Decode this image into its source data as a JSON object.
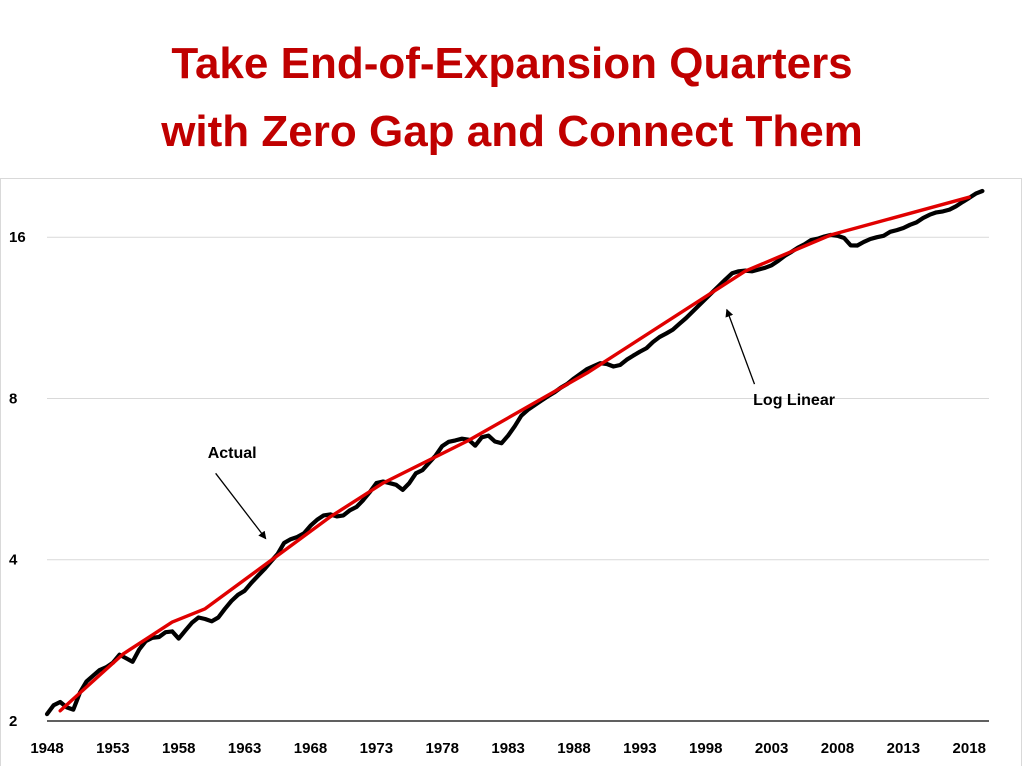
{
  "slide": {
    "title_line1": "Take End-of-Expansion Quarters",
    "title_line2": "with Zero Gap and Connect Them"
  },
  "colors": {
    "title": "#c00000",
    "actual": "#000000",
    "trend": "#e00000",
    "grid": "#d9d9d9"
  },
  "chart_data": {
    "type": "line",
    "y_scale": "log2",
    "ylim": [
      2,
      20.2
    ],
    "xlim": [
      1948,
      2019.5
    ],
    "grid": "horizontal",
    "y_ticks": [
      {
        "value": 2,
        "label": "2"
      },
      {
        "value": 4,
        "label": "4"
      },
      {
        "value": 8,
        "label": "8"
      },
      {
        "value": 16,
        "label": "16"
      }
    ],
    "x_ticks": [
      {
        "value": 1948,
        "label": "1948"
      },
      {
        "value": 1953,
        "label": "1953"
      },
      {
        "value": 1958,
        "label": "1958"
      },
      {
        "value": 1963,
        "label": "1963"
      },
      {
        "value": 1968,
        "label": "1968"
      },
      {
        "value": 1973,
        "label": "1973"
      },
      {
        "value": 1978,
        "label": "1978"
      },
      {
        "value": 1983,
        "label": "1983"
      },
      {
        "value": 1988,
        "label": "1988"
      },
      {
        "value": 1993,
        "label": "1993"
      },
      {
        "value": 1998,
        "label": "1998"
      },
      {
        "value": 2003,
        "label": "2003"
      },
      {
        "value": 2008,
        "label": "2008"
      },
      {
        "value": 2013,
        "label": "2013"
      },
      {
        "value": 2018,
        "label": "2018"
      }
    ],
    "series": [
      {
        "name": "Actual",
        "points": [
          [
            1948.0,
            2.06
          ],
          [
            1948.5,
            2.14
          ],
          [
            1949.0,
            2.17
          ],
          [
            1949.5,
            2.12
          ],
          [
            1950.0,
            2.1
          ],
          [
            1950.5,
            2.26
          ],
          [
            1951.0,
            2.37
          ],
          [
            1951.5,
            2.43
          ],
          [
            1952.0,
            2.49
          ],
          [
            1952.5,
            2.52
          ],
          [
            1953.0,
            2.57
          ],
          [
            1953.5,
            2.66
          ],
          [
            1954.0,
            2.62
          ],
          [
            1954.5,
            2.58
          ],
          [
            1955.0,
            2.72
          ],
          [
            1955.5,
            2.82
          ],
          [
            1956.0,
            2.86
          ],
          [
            1956.5,
            2.87
          ],
          [
            1957.0,
            2.93
          ],
          [
            1957.5,
            2.94
          ],
          [
            1958.0,
            2.85
          ],
          [
            1958.5,
            2.95
          ],
          [
            1959.0,
            3.05
          ],
          [
            1959.5,
            3.12
          ],
          [
            1960.0,
            3.1
          ],
          [
            1960.5,
            3.07
          ],
          [
            1961.0,
            3.12
          ],
          [
            1961.5,
            3.24
          ],
          [
            1962.0,
            3.35
          ],
          [
            1962.5,
            3.44
          ],
          [
            1963.0,
            3.5
          ],
          [
            1963.5,
            3.62
          ],
          [
            1964.0,
            3.73
          ],
          [
            1964.5,
            3.84
          ],
          [
            1965.0,
            3.97
          ],
          [
            1965.5,
            4.1
          ],
          [
            1966.0,
            4.3
          ],
          [
            1966.5,
            4.37
          ],
          [
            1967.0,
            4.41
          ],
          [
            1967.5,
            4.48
          ],
          [
            1968.0,
            4.63
          ],
          [
            1968.5,
            4.75
          ],
          [
            1969.0,
            4.84
          ],
          [
            1969.5,
            4.86
          ],
          [
            1970.0,
            4.82
          ],
          [
            1970.5,
            4.84
          ],
          [
            1971.0,
            4.95
          ],
          [
            1971.5,
            5.02
          ],
          [
            1972.0,
            5.17
          ],
          [
            1972.5,
            5.35
          ],
          [
            1973.0,
            5.56
          ],
          [
            1973.5,
            5.6
          ],
          [
            1974.0,
            5.56
          ],
          [
            1974.5,
            5.52
          ],
          [
            1975.0,
            5.4
          ],
          [
            1975.5,
            5.56
          ],
          [
            1976.0,
            5.8
          ],
          [
            1976.5,
            5.88
          ],
          [
            1977.0,
            6.07
          ],
          [
            1977.5,
            6.26
          ],
          [
            1978.0,
            6.52
          ],
          [
            1978.5,
            6.64
          ],
          [
            1979.0,
            6.68
          ],
          [
            1979.5,
            6.73
          ],
          [
            1980.0,
            6.7
          ],
          [
            1980.5,
            6.53
          ],
          [
            1981.0,
            6.77
          ],
          [
            1981.5,
            6.82
          ],
          [
            1982.0,
            6.65
          ],
          [
            1982.5,
            6.6
          ],
          [
            1983.0,
            6.82
          ],
          [
            1983.5,
            7.1
          ],
          [
            1984.0,
            7.43
          ],
          [
            1984.5,
            7.62
          ],
          [
            1985.0,
            7.77
          ],
          [
            1985.5,
            7.92
          ],
          [
            1986.0,
            8.07
          ],
          [
            1986.5,
            8.21
          ],
          [
            1987.0,
            8.38
          ],
          [
            1987.5,
            8.52
          ],
          [
            1988.0,
            8.72
          ],
          [
            1988.5,
            8.9
          ],
          [
            1989.0,
            9.08
          ],
          [
            1989.5,
            9.2
          ],
          [
            1990.0,
            9.31
          ],
          [
            1990.5,
            9.28
          ],
          [
            1991.0,
            9.18
          ],
          [
            1991.5,
            9.24
          ],
          [
            1992.0,
            9.45
          ],
          [
            1992.5,
            9.62
          ],
          [
            1993.0,
            9.78
          ],
          [
            1993.5,
            9.93
          ],
          [
            1994.0,
            10.2
          ],
          [
            1994.5,
            10.42
          ],
          [
            1995.0,
            10.58
          ],
          [
            1995.5,
            10.75
          ],
          [
            1996.0,
            11.03
          ],
          [
            1996.5,
            11.3
          ],
          [
            1997.0,
            11.62
          ],
          [
            1997.5,
            11.95
          ],
          [
            1998.0,
            12.28
          ],
          [
            1998.5,
            12.63
          ],
          [
            1999.0,
            12.98
          ],
          [
            1999.5,
            13.35
          ],
          [
            2000.0,
            13.7
          ],
          [
            2000.5,
            13.82
          ],
          [
            2001.0,
            13.86
          ],
          [
            2001.5,
            13.82
          ],
          [
            2002.0,
            13.92
          ],
          [
            2002.5,
            14.03
          ],
          [
            2003.0,
            14.18
          ],
          [
            2003.5,
            14.45
          ],
          [
            2004.0,
            14.77
          ],
          [
            2004.5,
            15.02
          ],
          [
            2005.0,
            15.3
          ],
          [
            2005.5,
            15.52
          ],
          [
            2006.0,
            15.81
          ],
          [
            2006.5,
            15.9
          ],
          [
            2007.0,
            16.05
          ],
          [
            2007.5,
            16.16
          ],
          [
            2008.0,
            16.1
          ],
          [
            2008.5,
            15.95
          ],
          [
            2009.0,
            15.45
          ],
          [
            2009.5,
            15.44
          ],
          [
            2010.0,
            15.68
          ],
          [
            2010.5,
            15.88
          ],
          [
            2011.0,
            16.0
          ],
          [
            2011.5,
            16.1
          ],
          [
            2012.0,
            16.38
          ],
          [
            2012.5,
            16.5
          ],
          [
            2013.0,
            16.65
          ],
          [
            2013.5,
            16.88
          ],
          [
            2014.0,
            17.05
          ],
          [
            2014.5,
            17.38
          ],
          [
            2015.0,
            17.63
          ],
          [
            2015.5,
            17.8
          ],
          [
            2016.0,
            17.88
          ],
          [
            2016.5,
            18.02
          ],
          [
            2017.0,
            18.28
          ],
          [
            2017.5,
            18.62
          ],
          [
            2018.0,
            18.95
          ],
          [
            2018.5,
            19.3
          ],
          [
            2019.0,
            19.52
          ]
        ]
      },
      {
        "name": "Log Linear",
        "points": [
          [
            1949.0,
            2.09
          ],
          [
            1953.8,
            2.67
          ],
          [
            1957.5,
            3.06
          ],
          [
            1960.0,
            3.24
          ],
          [
            1969.5,
            4.81
          ],
          [
            1973.5,
            5.56
          ],
          [
            1980.0,
            6.68
          ],
          [
            1989.0,
            8.93
          ],
          [
            2001.0,
            13.83
          ],
          [
            2007.5,
            16.16
          ],
          [
            2018.0,
            19.0
          ]
        ]
      }
    ],
    "annotations": [
      {
        "label": "Actual",
        "text_at": [
          1960.2,
          6.2
        ],
        "arrow_from": [
          1960.8,
          5.8
        ],
        "arrow_to": [
          1964.6,
          4.38
        ]
      },
      {
        "label": "Log Linear",
        "text_at": [
          2001.6,
          7.78
        ],
        "arrow_from": [
          2001.7,
          8.51
        ],
        "arrow_to": [
          1999.6,
          11.72
        ]
      }
    ]
  }
}
